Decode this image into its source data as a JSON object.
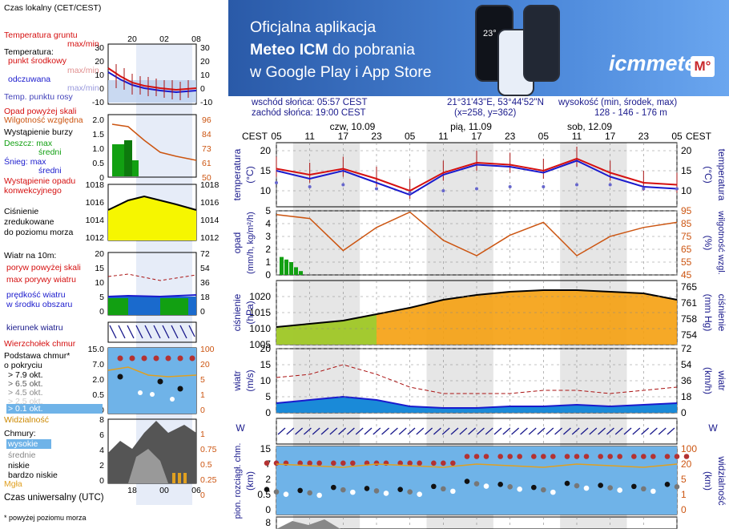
{
  "legend": {
    "local_time": "Czas lokalny\n(CET/CEST)",
    "soil_temp": "Temperatura gruntu",
    "soil_temp_sub": "max/min",
    "temperature": "Temperatura:",
    "mid_point": "punkt środkowy",
    "max_min": "max/min",
    "perceived": "odczuwana",
    "perceived_sub": "max/min",
    "dew_point": "Temp. punktu rosy",
    "rain_above": "Opad powyżej skali",
    "humidity": "Wilgotność względna",
    "storm": "Wystąpienie burzy",
    "rain_max": "Deszcz: max",
    "rain_mid": "średni",
    "snow_max": "Śnieg:  max",
    "snow_mid": "średni",
    "precip_event": "Wystąpienie opadu\nkonwekcyjnego",
    "pressure": "Ciśnienie\nzredukowane\ndo poziomu morza",
    "wind_10m": "Wiatr na 10m:",
    "gust_above": "poryw powyżej skali",
    "gust_max": "max porywy wiatru",
    "wind_mean": "prędkość wiatru\nw środku obszaru",
    "wind_dir": "kierunek wiatru",
    "cloud_top": "Wierzchołek chmur",
    "cloud_base": "Podstawa chmur*\no pokryciu",
    "c79": "> 7.9 okt.",
    "c65": "> 6.5 okt.",
    "c45": "> 4.5 okt.",
    "c25": "> 2.5 okt.",
    "c01": "> 0.1 okt.",
    "visibility": "Widzialność",
    "clouds": "Chmury:",
    "high": "wysokie",
    "mid": "średnie",
    "low": "niskie",
    "vlow": "bardzo niskie",
    "fog": "Mgła",
    "utc": "Czas uniwersalny (UTC)",
    "footnote": "* powyżej poziomu morza"
  },
  "legend_axes": {
    "top_times": [
      "20",
      "02",
      "08"
    ],
    "bottom_times": [
      "18",
      "00",
      "06"
    ],
    "temp_ticks": [
      "30",
      "20",
      "10",
      "0",
      "-10"
    ],
    "rain_ticks": [
      "2.0",
      "1.5",
      "1.0",
      "0.5",
      "0"
    ],
    "rh_ticks": [
      "96",
      "84",
      "73",
      "61",
      "50"
    ],
    "press_ticks": [
      "1018",
      "1016",
      "1014",
      "1012"
    ],
    "wind_ticks": [
      "20",
      "15",
      "10",
      "5",
      "0"
    ],
    "wind_kmh": [
      "72",
      "54",
      "36",
      "18",
      "0"
    ],
    "cloud_ticks": [
      "15.0",
      "7.0",
      "2.0",
      "0.5",
      "0"
    ],
    "vis_ticks": [
      "100",
      "20",
      "5",
      "1",
      "0"
    ],
    "clouds_ticks": [
      "8",
      "6",
      "4",
      "2",
      "0"
    ],
    "clouds_right": [
      "1",
      "0.75",
      "0.5",
      "0.25",
      "0"
    ]
  },
  "banner": {
    "line1": "Oficjalna aplikacja",
    "line2_bold": "Meteo ICM",
    "line2_rest": " do pobrania",
    "line3": "w Google Play i App Store",
    "logo": "icmmeteo",
    "logo_m": "M°",
    "phone_temp": "23°"
  },
  "header": {
    "sunrise": "wschód słońca: 05:57 CEST",
    "sunset": "zachód słońca: 19:00 CEST",
    "coords": "21°31'43\"E, 53°44'52\"N",
    "grid": "(x=258,  y=362)",
    "elev_label": "wysokość (min, środek, max)",
    "elev": "128 - 146 - 176 m"
  },
  "main": {
    "tz": "CEST",
    "days": [
      "czw, 10.09",
      "pią, 11.09",
      "sob, 12.09"
    ],
    "hours": [
      "05",
      "11",
      "17",
      "23",
      "05",
      "11",
      "17",
      "23",
      "05",
      "11",
      "17",
      "23",
      "05"
    ],
    "temp_title": "temperatura",
    "temp_unit": "(°C)",
    "precip_title": "opad",
    "precip_unit": "(mm/h, kg/m²/h)",
    "rh_title": "wilgotność wzgl.",
    "rh_unit": "(%)",
    "press_title": "ciśnienie",
    "press_unit": "(hPa)",
    "press_unit_r": "(mm Hg)",
    "wind_title": "wiatr",
    "wind_unit": "(m/s)",
    "wind_unit_r": "(km/h)",
    "vis_title": "widzialność",
    "vis_unit": "(km)",
    "cloud_title": "pion. rozciągł. chm.",
    "cloud_unit": "(km)"
  },
  "chart_data": [
    {
      "type": "line",
      "title": "temperatura",
      "ylabel": "(°C)",
      "ylim": [
        6,
        22
      ],
      "y_ticks": [
        20,
        15,
        10
      ],
      "x": [
        "czw 05",
        "czw 11",
        "czw 17",
        "czw 23",
        "pią 05",
        "pią 11",
        "pią 17",
        "pią 23",
        "sob 05",
        "sob 11",
        "sob 17",
        "sob 23",
        "nie 05"
      ],
      "series": [
        {
          "values": [
            15.5,
            14.0,
            15.5,
            13.0,
            10.0,
            14.5,
            17.0,
            16.5,
            15.0,
            18.0,
            14.5,
            12.0,
            11.5
          ]
        },
        {
          "values": [
            15.0,
            13.0,
            15.0,
            12.0,
            9.0,
            14.0,
            16.5,
            16.0,
            14.5,
            17.5,
            13.5,
            11.0,
            10.5
          ]
        },
        {
          "values": [
            12.0,
            11.0,
            11.5,
            10.5,
            9.5,
            10.0,
            10.5,
            11.0,
            11.0,
            11.5,
            11.5,
            10.5,
            10.5
          ]
        }
      ]
    },
    {
      "type": "line",
      "title": "wilgotność wzgl.",
      "ylabel": "(%)",
      "ylim": [
        45,
        95
      ],
      "y_ticks": [
        95,
        85,
        75,
        65,
        55,
        45
      ],
      "x": [
        "czw 05",
        "czw 11",
        "czw 17",
        "czw 23",
        "pią 05",
        "pią 11",
        "pią 17",
        "pią 23",
        "sob 05",
        "sob 11",
        "sob 17",
        "sob 23",
        "nie 05"
      ],
      "series": [
        {
          "values": [
            92,
            89,
            64,
            82,
            94,
            72,
            60,
            76,
            86,
            60,
            75,
            82,
            86
          ]
        }
      ]
    },
    {
      "type": "bar",
      "title": "opad",
      "ylabel": "(mm/h, kg/m²/h)",
      "ylim": [
        0,
        5
      ],
      "y_ticks": [
        5,
        4,
        3,
        2,
        1,
        0
      ],
      "categories": [
        "czw 02",
        "czw 03",
        "czw 04",
        "czw 05",
        "czw 06"
      ],
      "values": [
        1.4,
        1.2,
        1.0,
        0.6,
        0.3
      ]
    },
    {
      "type": "area",
      "title": "ciśnienie",
      "ylabel": "(hPa)",
      "ylim": [
        1005,
        1025
      ],
      "y_ticks": [
        1020,
        1015,
        1010,
        1005
      ],
      "right_ticks": [
        765,
        761,
        758,
        754
      ],
      "x": [
        "czw 05",
        "czw 11",
        "czw 17",
        "czw 23",
        "pią 05",
        "pią 11",
        "pią 17",
        "pią 23",
        "sob 05",
        "sob 11",
        "sob 17",
        "sob 23",
        "nie 05"
      ],
      "values": [
        1010.5,
        1011.5,
        1012.5,
        1014.5,
        1016.5,
        1019,
        1020.5,
        1021.5,
        1022,
        1022,
        1021.5,
        1021,
        1019
      ]
    },
    {
      "type": "line",
      "title": "wiatr",
      "ylabel": "(m/s)",
      "ylim": [
        0,
        20
      ],
      "y_ticks": [
        20,
        15,
        10,
        5,
        0
      ],
      "right_ticks": [
        72,
        54,
        36,
        18,
        0
      ],
      "x": [
        "czw 05",
        "czw 11",
        "czw 17",
        "czw 23",
        "pią 05",
        "pią 11",
        "pią 17",
        "pią 23",
        "sob 05",
        "sob 11",
        "sob 17",
        "sob 23",
        "nie 05"
      ],
      "series": [
        {
          "values": [
            11,
            12,
            15,
            12,
            8,
            6,
            6,
            6,
            7,
            7,
            6,
            7,
            8
          ]
        },
        {
          "values": [
            3,
            4,
            5,
            4,
            2,
            1.5,
            1.5,
            2,
            2,
            2.5,
            2,
            2.5,
            3
          ]
        }
      ]
    },
    {
      "type": "scatter",
      "title": "pion. rozciągł. chm.",
      "ylabel": "(km)",
      "y_ticks": [
        15.0,
        7.0,
        2.0,
        0.5,
        0
      ],
      "right_ticks": [
        100,
        20,
        5,
        1,
        0
      ],
      "x": [
        "czw 05",
        "czw 11",
        "czw 17",
        "czw 23",
        "pią 05",
        "pią 11",
        "pią 17",
        "pią 23",
        "sob 05",
        "sob 11",
        "sob 17",
        "sob 23",
        "nie 05"
      ],
      "series": [
        {
          "values": [
            7.5,
            7.5,
            7.5,
            7.5,
            7.5,
            7.5,
            11.0,
            11.0,
            11.0,
            11.0,
            11.0,
            11.0,
            11.0
          ]
        },
        {
          "values": [
            1.0,
            0.9,
            1.2,
            1.1,
            1.0,
            1.3,
            1.8,
            1.5,
            1.2,
            1.6,
            1.4,
            1.3,
            1.5
          ]
        }
      ]
    }
  ],
  "colors": {
    "red": "#d51010",
    "blue": "#1a1acd",
    "orange": "#cc5511",
    "navy": "#1a1a8c",
    "green": "#12a012",
    "yellow": "#f6f600"
  }
}
